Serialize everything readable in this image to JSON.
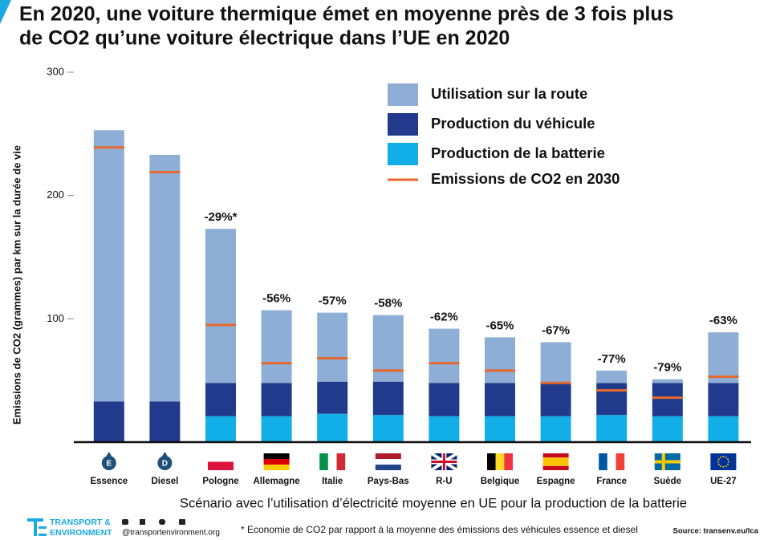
{
  "chart_data": {
    "type": "stacked-bar",
    "title": [
      "En 2020, une voiture thermique émet en moyenne près de 3 fois plus",
      "de CO2 qu’une voiture électrique dans l’UE en 2020"
    ],
    "y_label": "Emissions de CO2 (grammes) par km sur la durée de vie",
    "x_label": "Scénario avec l’utilisation d’électricité moyenne en UE pour la production de la batterie",
    "categories": [
      "Essence",
      "Diesel",
      "Pologne",
      "Allemagne",
      "Italie",
      "Pays-Bas",
      "R-U",
      "Belgique",
      "Espagne",
      "France",
      "Suède",
      "UE-27"
    ],
    "series": [
      {
        "name": "Production de la batterie",
        "color": "#12aee8",
        "values": [
          0,
          0,
          21,
          21,
          23,
          22,
          21,
          21,
          21,
          22,
          21,
          21
        ]
      },
      {
        "name": "Production du véhicule",
        "color": "#223a8c",
        "values": [
          33,
          33,
          27,
          27,
          26,
          27,
          27,
          27,
          27,
          26,
          27,
          27
        ]
      },
      {
        "name": "Utilisation sur la route",
        "color": "#8eaed6",
        "values": [
          220,
          200,
          125,
          59,
          56,
          54,
          44,
          37,
          33,
          10,
          3,
          41
        ]
      }
    ],
    "markers": {
      "name": "Emissions de CO2 en 2030",
      "color": "#e5692e",
      "values": [
        239,
        219,
        95,
        64,
        68,
        58,
        64,
        58,
        48,
        42,
        36,
        53
      ]
    },
    "annotations": [
      null,
      null,
      "-29%*",
      "-56%",
      "-57%",
      "-58%",
      "-62%",
      "-65%",
      "-67%",
      "-77%",
      "-79%",
      "-63%"
    ],
    "ylim": [
      0,
      300
    ],
    "yticks": [
      100,
      200,
      300
    ],
    "legend_order": [
      2,
      1,
      0
    ],
    "footer": {
      "org": [
        "TRANSPORT &",
        "ENVIRONMENT"
      ],
      "handle": "@transportenvironment.org",
      "note": "* Economie de CO2 par rapport à la moyenne des émissions des véhicules essence et diesel",
      "source": "Source: transenv.eu/lca"
    }
  }
}
